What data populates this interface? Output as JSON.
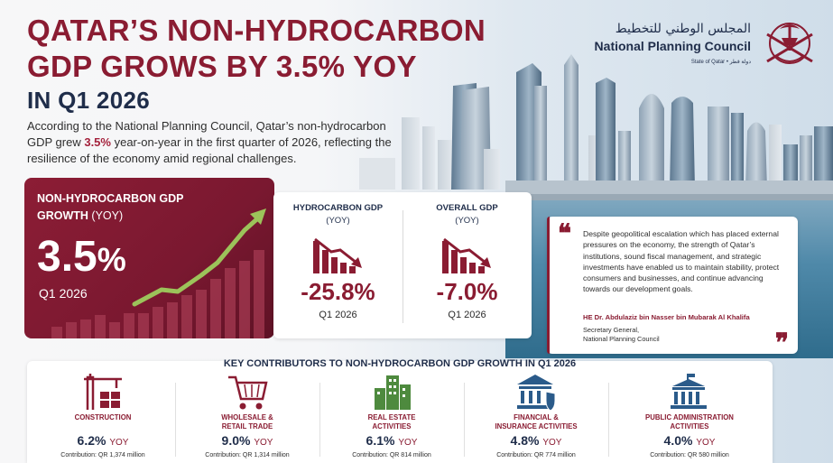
{
  "header": {
    "title_line1": "QATAR’S NON-HYDROCARBON",
    "title_line2": "GDP GROWS BY 3.5% YOY",
    "title_line3": "IN Q1 2026"
  },
  "intro": {
    "part1": "According to the National Planning Council, Qatar’s non-hydrocarbon GDP grew ",
    "highlight": "3.5%",
    "part2": " year-on-year in the first quarter of 2026, reflecting the resilience of the economy amid regional challenges."
  },
  "logo": {
    "arabic": "المجلس الوطني للتخطيط",
    "english": "National Planning Council",
    "state": "State of Qatar • دولة قطر",
    "icon": "qatar-emblem-icon"
  },
  "main_metric": {
    "title": "NON-HYDROCARBON GDP",
    "title2": "GROWTH ",
    "yoy": "(YOY)",
    "value": "3.5",
    "pct": "%",
    "period": "Q1 2026",
    "icon": "growth-arrow-chart-icon"
  },
  "side_metrics": [
    {
      "title": "HYDROCARBON GDP",
      "sub": "(YOY)",
      "value": "-25.8%",
      "period": "Q1 2026",
      "icon": "declining-bar-chart-icon"
    },
    {
      "title": "OVERALL GDP",
      "sub": "(YOY)",
      "value": "-7.0%",
      "period": "Q1 2026",
      "icon": "declining-bar-chart-icon"
    }
  ],
  "quote": {
    "open": "❝",
    "close": "❞",
    "text": "Despite geopolitical escalation which has placed external pressures on the economy, the strength of Qatar’s institutions, sound fiscal management, and strategic investments have enabled us to maintain stability, protect consumers and businesses, and continue advancing towards our development goals.",
    "speaker": "HE Dr. Abdulaziz bin Nasser bin Mubarak Al Khalifa",
    "role_line1": "Secretary General,",
    "role_line2": "National Planning Council"
  },
  "contributors": {
    "title": "KEY CONTRIBUTORS TO NON-HYDROCARBON GDP GROWTH IN Q1 2026",
    "items": [
      {
        "name": "CONSTRUCTION",
        "name2": "",
        "value": "6.2%",
        "yoy": "YOY",
        "amount": "Contribution: QR 1,374 million",
        "icon": "construction-crane-icon"
      },
      {
        "name": "WHOLESALE &",
        "name2": "RETAIL TRADE",
        "value": "9.0%",
        "yoy": "YOY",
        "amount": "Contribution: QR 1,314 million",
        "icon": "shopping-cart-icon"
      },
      {
        "name": "REAL ESTATE",
        "name2": "ACTIVITIES",
        "value": "6.1%",
        "yoy": "YOY",
        "amount": "Contribution: QR 814 million",
        "icon": "buildings-icon"
      },
      {
        "name": "FINANCIAL &",
        "name2": "INSURANCE ACTIVITIES",
        "value": "4.8%",
        "yoy": "YOY",
        "amount": "Contribution: QR 774 million",
        "icon": "bank-shield-icon"
      },
      {
        "name": "PUBLIC ADMINISTRATION",
        "name2": "ACTIVITIES",
        "value": "4.0%",
        "yoy": "YOY",
        "amount": "Contribution: QR 580 million",
        "icon": "government-building-icon"
      }
    ]
  },
  "colors": {
    "maroon": "#8a1c32",
    "navy": "#1f2d4a",
    "sea": "#3a7a9a"
  }
}
